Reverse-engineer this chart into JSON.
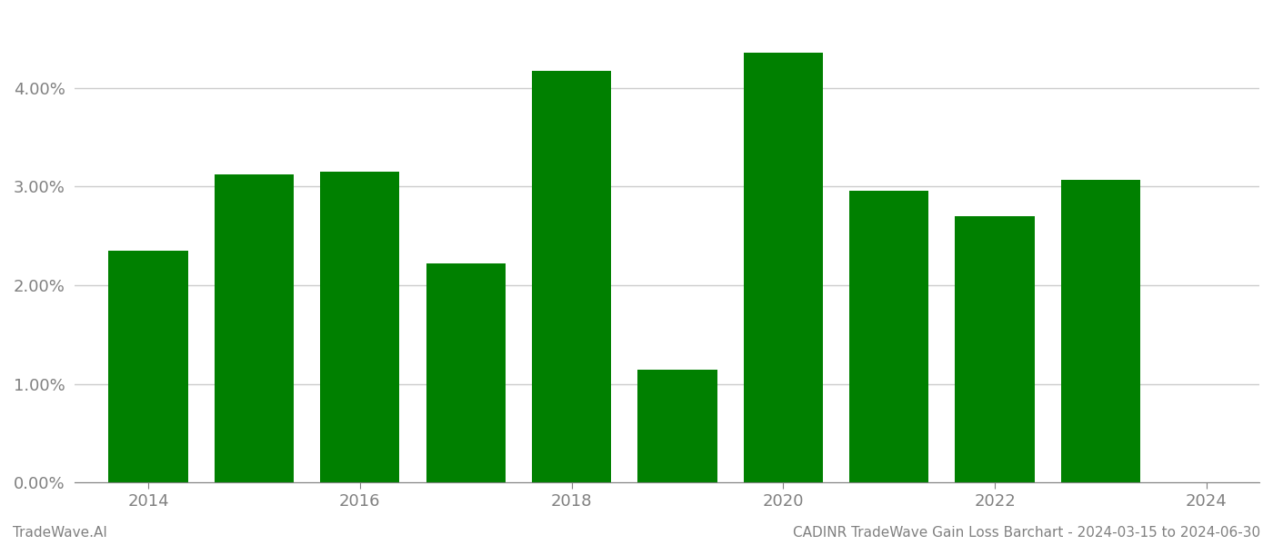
{
  "years": [
    2014,
    2015,
    2016,
    2017,
    2018,
    2019,
    2020,
    2021,
    2022,
    2023
  ],
  "values": [
    0.0235,
    0.0312,
    0.0315,
    0.0222,
    0.0417,
    0.0114,
    0.0435,
    0.0296,
    0.027,
    0.0307
  ],
  "bar_color": "#008000",
  "bar_width": 0.75,
  "ylim": [
    0,
    0.0475
  ],
  "yticks": [
    0.0,
    0.01,
    0.02,
    0.03,
    0.04
  ],
  "xtick_positions": [
    2014,
    2016,
    2018,
    2020,
    2022,
    2024
  ],
  "xtick_labels": [
    "2014",
    "2016",
    "2018",
    "2020",
    "2022",
    "2024"
  ],
  "xlim": [
    2013.3,
    2024.5
  ],
  "grid_color": "#cccccc",
  "footer_left": "TradeWave.AI",
  "footer_right": "CADINR TradeWave Gain Loss Barchart - 2024-03-15 to 2024-06-30",
  "background_color": "#ffffff",
  "text_color": "#808080",
  "tick_labelsize": 13
}
